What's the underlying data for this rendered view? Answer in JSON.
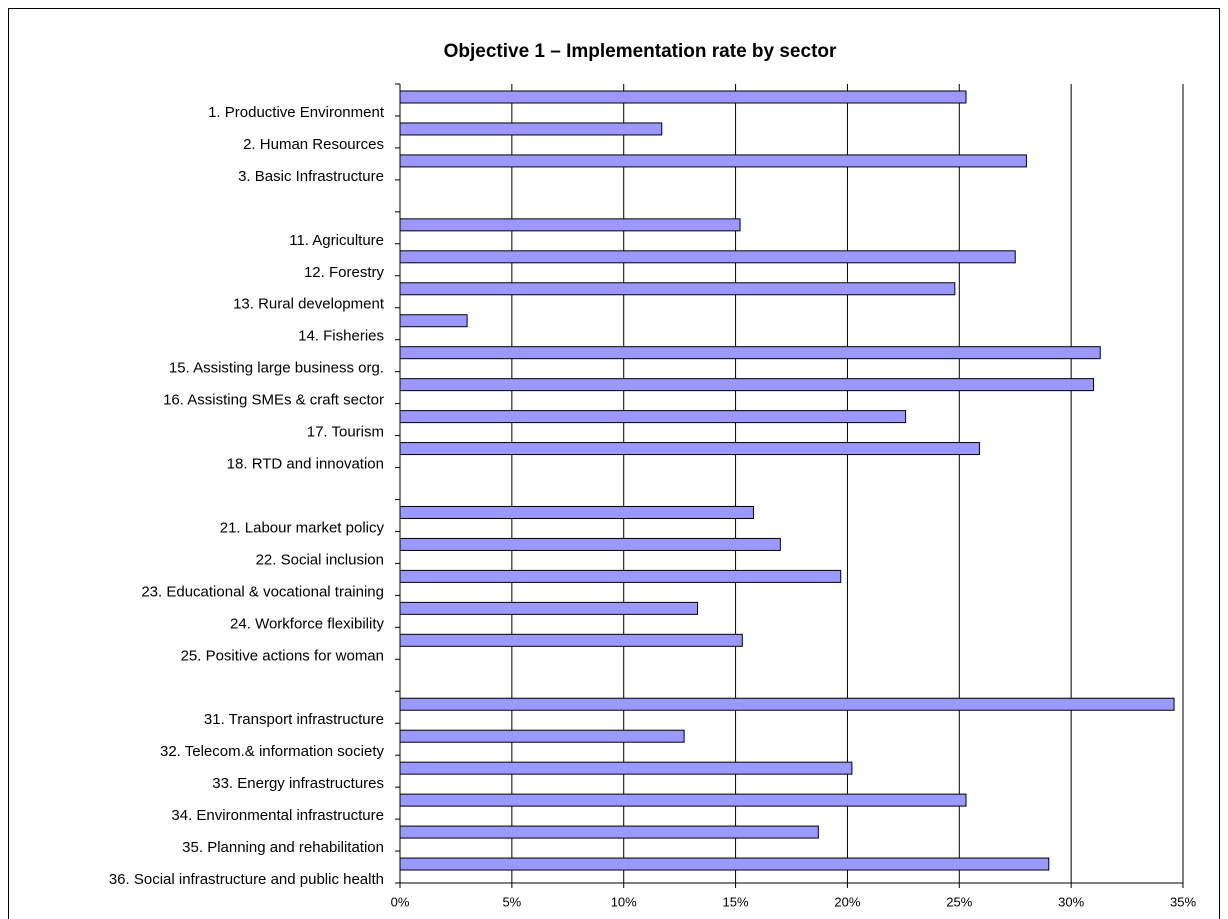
{
  "chart_data": {
    "type": "barh",
    "title": "Objective 1 – Implementation rate by sector",
    "categories": [
      "1. Productive Environment",
      "2. Human Resources",
      "3. Basic Infrastructure",
      null,
      "11. Agriculture",
      "12. Forestry",
      "13. Rural development",
      "14. Fisheries",
      "15. Assisting large business org.",
      "16. Assisting SMEs & craft sector",
      "17. Tourism",
      "18. RTD and innovation",
      null,
      "21. Labour market policy",
      "22. Social inclusion",
      "23. Educational & vocational training",
      "24. Workforce flexibility",
      "25. Positive actions for woman",
      null,
      "31. Transport infrastructure",
      "32. Telecom.& information society",
      "33. Energy infrastructures",
      "34. Environmental infrastructure",
      "35. Planning and rehabilitation",
      "36. Social infrastructure and public health"
    ],
    "values": [
      25.3,
      11.7,
      28.0,
      null,
      15.2,
      27.5,
      24.8,
      3.0,
      31.3,
      31.0,
      22.6,
      25.9,
      null,
      15.8,
      17.0,
      19.7,
      13.3,
      15.3,
      null,
      34.6,
      12.7,
      20.2,
      25.3,
      18.7,
      29.0
    ],
    "color": "#9999ff",
    "xlim": [
      0,
      35
    ],
    "xticks": [
      {
        "value": 0,
        "label": "0%"
      },
      {
        "value": 5,
        "label": "5%"
      },
      {
        "value": 10,
        "label": "10%"
      },
      {
        "value": 15,
        "label": "15%"
      },
      {
        "value": 20,
        "label": "20%"
      },
      {
        "value": 25,
        "label": "25%"
      },
      {
        "value": 30,
        "label": "30%"
      },
      {
        "value": 35,
        "label": "35%"
      }
    ],
    "grid": true
  }
}
